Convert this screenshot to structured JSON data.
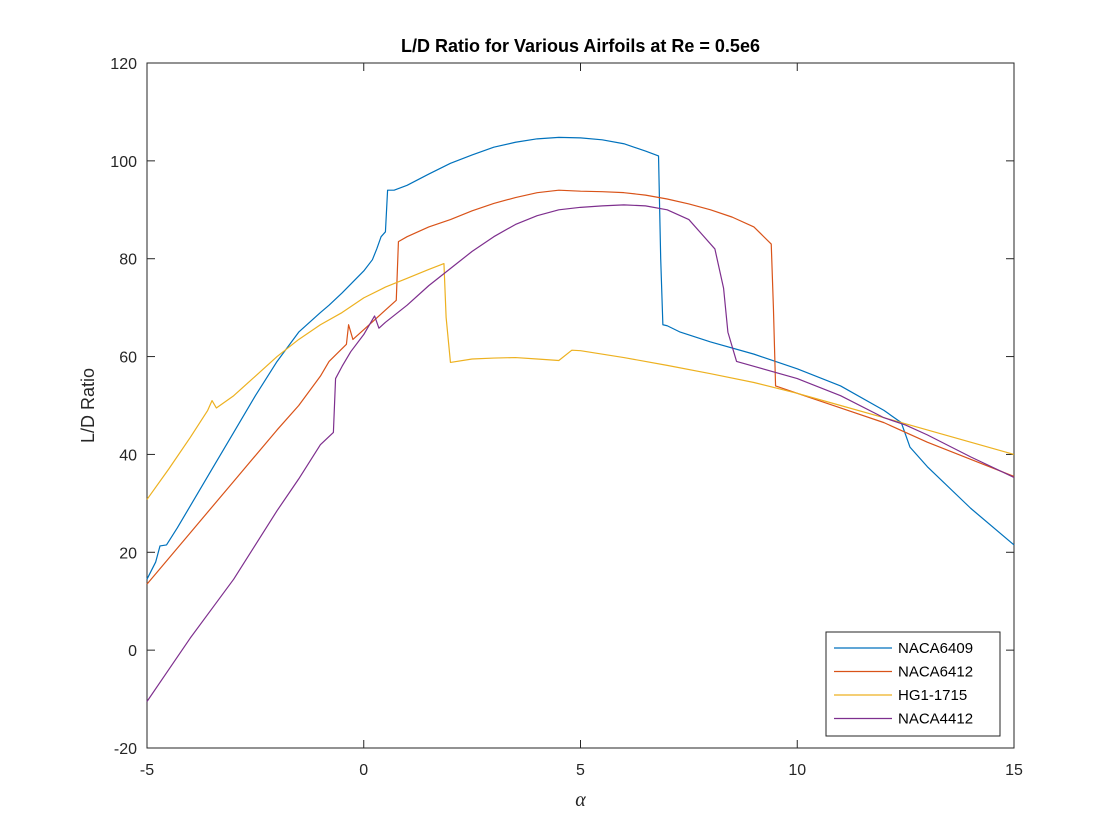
{
  "chart_data": {
    "type": "line",
    "title": "L/D Ratio for Various Airfoils at Re = 0.5e6",
    "xlabel": "α",
    "ylabel": "L/D Ratio",
    "xlim": [
      -5,
      15
    ],
    "ylim": [
      -20,
      120
    ],
    "xticks": [
      -5,
      0,
      5,
      10,
      15
    ],
    "yticks": [
      -20,
      0,
      20,
      40,
      60,
      80,
      100,
      120
    ],
    "grid": false,
    "legend_position": "bottom-right",
    "series": [
      {
        "name": "NACA6409",
        "color": "#0072BD",
        "points": [
          [
            -5,
            14.5
          ],
          [
            -4.8,
            18
          ],
          [
            -4.7,
            21.3
          ],
          [
            -4.55,
            21.5
          ],
          [
            -4.3,
            25
          ],
          [
            -4,
            29.5
          ],
          [
            -3.5,
            37
          ],
          [
            -3,
            44.5
          ],
          [
            -2.5,
            52
          ],
          [
            -2,
            59
          ],
          [
            -1.5,
            65
          ],
          [
            -1,
            69
          ],
          [
            -0.8,
            70.5
          ],
          [
            -0.5,
            73
          ],
          [
            0,
            77.5
          ],
          [
            0.2,
            79.8
          ],
          [
            0.3,
            82
          ],
          [
            0.4,
            84.5
          ],
          [
            0.5,
            85.5
          ],
          [
            0.55,
            94
          ],
          [
            0.7,
            94
          ],
          [
            1,
            95
          ],
          [
            1.5,
            97.3
          ],
          [
            2,
            99.5
          ],
          [
            2.5,
            101.2
          ],
          [
            3,
            102.8
          ],
          [
            3.5,
            103.8
          ],
          [
            4,
            104.5
          ],
          [
            4.5,
            104.8
          ],
          [
            5,
            104.7
          ],
          [
            5.5,
            104.3
          ],
          [
            6,
            103.5
          ],
          [
            6.5,
            102
          ],
          [
            6.8,
            101
          ],
          [
            6.85,
            80
          ],
          [
            6.9,
            66.5
          ],
          [
            7,
            66.3
          ],
          [
            7.3,
            65
          ],
          [
            8,
            63
          ],
          [
            9,
            60.5
          ],
          [
            10,
            57.5
          ],
          [
            11,
            54
          ],
          [
            12,
            49
          ],
          [
            12.4,
            46.5
          ],
          [
            12.6,
            41.5
          ],
          [
            13,
            37.5
          ],
          [
            14,
            29
          ],
          [
            15,
            21.5
          ]
        ]
      },
      {
        "name": "NACA6412",
        "color": "#D95319",
        "points": [
          [
            -5,
            13.5
          ],
          [
            -4,
            24
          ],
          [
            -3,
            34.5
          ],
          [
            -2,
            45
          ],
          [
            -1.5,
            50
          ],
          [
            -1,
            56
          ],
          [
            -0.8,
            59
          ],
          [
            -0.4,
            62.5
          ],
          [
            -0.35,
            66.5
          ],
          [
            -0.25,
            63.5
          ],
          [
            0,
            65.5
          ],
          [
            0.5,
            69.5
          ],
          [
            0.75,
            71.5
          ],
          [
            0.8,
            83.5
          ],
          [
            1,
            84.5
          ],
          [
            1.5,
            86.5
          ],
          [
            2,
            88
          ],
          [
            2.5,
            89.8
          ],
          [
            3,
            91.3
          ],
          [
            3.5,
            92.5
          ],
          [
            4,
            93.5
          ],
          [
            4.5,
            94
          ],
          [
            5,
            93.8
          ],
          [
            5.5,
            93.7
          ],
          [
            6,
            93.5
          ],
          [
            6.5,
            93
          ],
          [
            7,
            92.2
          ],
          [
            7.5,
            91.2
          ],
          [
            8,
            90
          ],
          [
            8.5,
            88.5
          ],
          [
            9,
            86.5
          ],
          [
            9.4,
            83
          ],
          [
            9.45,
            70
          ],
          [
            9.5,
            54
          ],
          [
            10,
            52.5
          ],
          [
            11,
            49.5
          ],
          [
            12,
            46.5
          ],
          [
            13,
            42.5
          ],
          [
            14,
            39
          ],
          [
            15,
            35.5
          ]
        ]
      },
      {
        "name": "HG1-1715",
        "color": "#EDB120",
        "points": [
          [
            -5,
            30.8
          ],
          [
            -4.5,
            37
          ],
          [
            -4,
            43.5
          ],
          [
            -3.6,
            49
          ],
          [
            -3.5,
            51
          ],
          [
            -3.4,
            49.5
          ],
          [
            -3,
            52
          ],
          [
            -2.5,
            56
          ],
          [
            -2,
            60
          ],
          [
            -1.5,
            63.5
          ],
          [
            -1,
            66.5
          ],
          [
            -0.5,
            69
          ],
          [
            0,
            72
          ],
          [
            0.5,
            74.2
          ],
          [
            1,
            76
          ],
          [
            1.5,
            77.8
          ],
          [
            1.85,
            79
          ],
          [
            1.9,
            68
          ],
          [
            2,
            58.8
          ],
          [
            2.5,
            59.5
          ],
          [
            3,
            59.7
          ],
          [
            3.5,
            59.8
          ],
          [
            4,
            59.5
          ],
          [
            4.5,
            59.2
          ],
          [
            4.8,
            61.3
          ],
          [
            5,
            61.2
          ],
          [
            6,
            59.8
          ],
          [
            7,
            58.2
          ],
          [
            8,
            56.5
          ],
          [
            9,
            54.7
          ],
          [
            10,
            52.5
          ],
          [
            11,
            50
          ],
          [
            12,
            47.5
          ],
          [
            13,
            45
          ],
          [
            14,
            42.5
          ],
          [
            15,
            40
          ]
        ]
      },
      {
        "name": "NACA4412",
        "color": "#7E2F8E",
        "points": [
          [
            -5,
            -10.5
          ],
          [
            -4.5,
            -4
          ],
          [
            -4,
            2.5
          ],
          [
            -3.5,
            8.5
          ],
          [
            -3,
            14.5
          ],
          [
            -2.5,
            21.5
          ],
          [
            -2,
            28.5
          ],
          [
            -1.5,
            35
          ],
          [
            -1,
            42
          ],
          [
            -0.7,
            44.5
          ],
          [
            -0.65,
            55.5
          ],
          [
            -0.5,
            58
          ],
          [
            -0.3,
            61
          ],
          [
            0,
            64.5
          ],
          [
            0.25,
            68.3
          ],
          [
            0.35,
            65.8
          ],
          [
            0.5,
            67
          ],
          [
            1,
            70.5
          ],
          [
            1.5,
            74.5
          ],
          [
            2,
            78
          ],
          [
            2.5,
            81.5
          ],
          [
            3,
            84.5
          ],
          [
            3.5,
            87
          ],
          [
            4,
            88.8
          ],
          [
            4.5,
            90
          ],
          [
            5,
            90.5
          ],
          [
            5.5,
            90.8
          ],
          [
            6,
            91
          ],
          [
            6.5,
            90.8
          ],
          [
            7,
            90
          ],
          [
            7.5,
            88
          ],
          [
            7.8,
            85
          ],
          [
            8.1,
            82
          ],
          [
            8.3,
            74
          ],
          [
            8.4,
            65
          ],
          [
            8.6,
            59
          ],
          [
            9,
            58
          ],
          [
            10,
            55.5
          ],
          [
            11,
            52
          ],
          [
            12,
            47.5
          ],
          [
            12.5,
            46
          ],
          [
            13,
            44
          ],
          [
            14,
            39.5
          ],
          [
            15,
            35.3
          ]
        ]
      }
    ]
  }
}
